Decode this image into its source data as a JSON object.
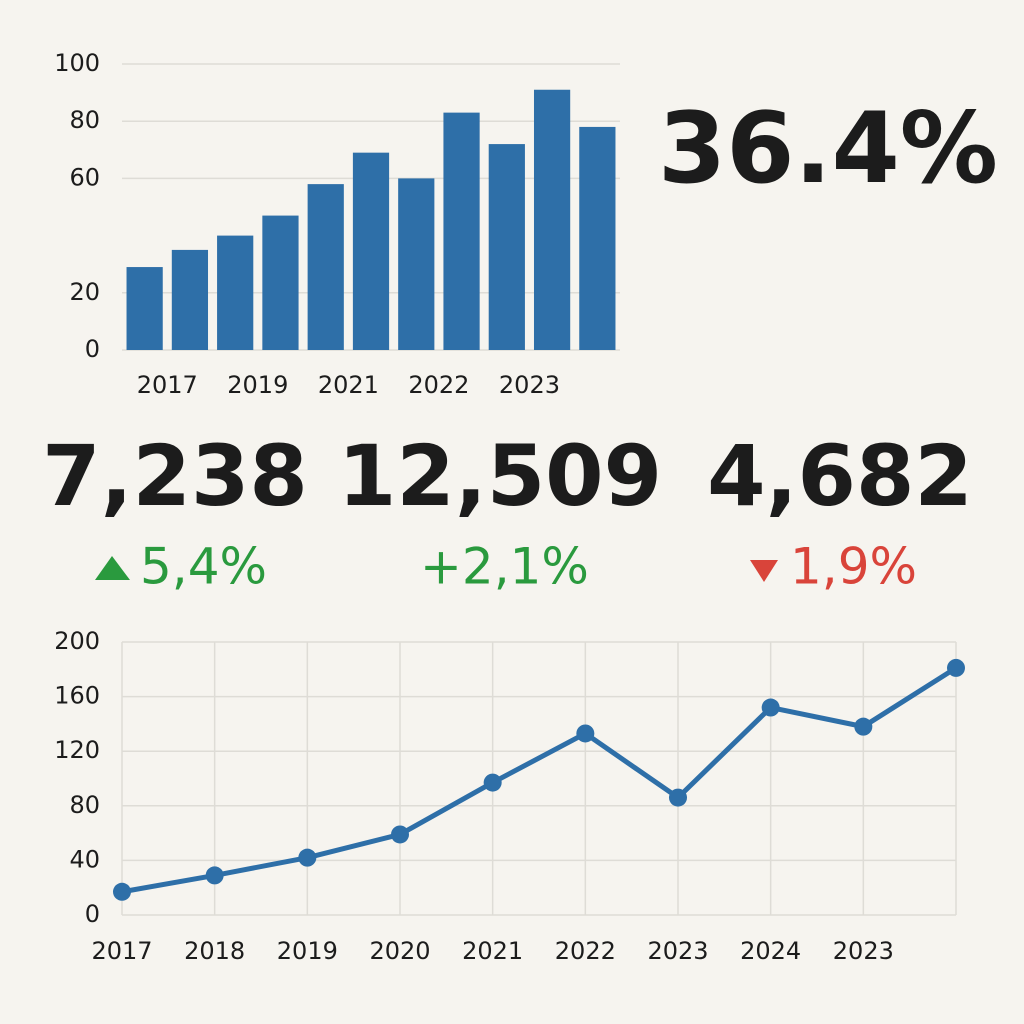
{
  "chart_data": [
    {
      "type": "bar",
      "categories": [
        "2017",
        null,
        "2019",
        null,
        "2021",
        null,
        "2022",
        null,
        "2023",
        null,
        null
      ],
      "values": [
        29,
        35,
        40,
        47,
        58,
        69,
        60,
        83,
        72,
        91,
        78
      ],
      "color": "#2e6fa8",
      "ylim": [
        0,
        100
      ],
      "yticks": [
        0,
        20,
        60,
        80,
        100
      ],
      "grid": true
    },
    {
      "type": "line",
      "categories": [
        "2017",
        "2018",
        "2019",
        "2020",
        "2021",
        "2022",
        "2023",
        "2024",
        "2023",
        null
      ],
      "values": [
        17,
        29,
        42,
        59,
        97,
        133,
        86,
        152,
        138,
        181
      ],
      "color": "#2e6fa8",
      "ylim": [
        0,
        200
      ],
      "yticks": [
        0,
        40,
        80,
        120,
        160,
        200
      ],
      "grid": true
    }
  ],
  "headline": "36.4%",
  "kpis": [
    {
      "value": "7,238",
      "change": "5,4%"
    },
    {
      "value": "12,509",
      "change": "+2,1%"
    },
    {
      "value": "4,682",
      "change": "1,9%"
    }
  ]
}
